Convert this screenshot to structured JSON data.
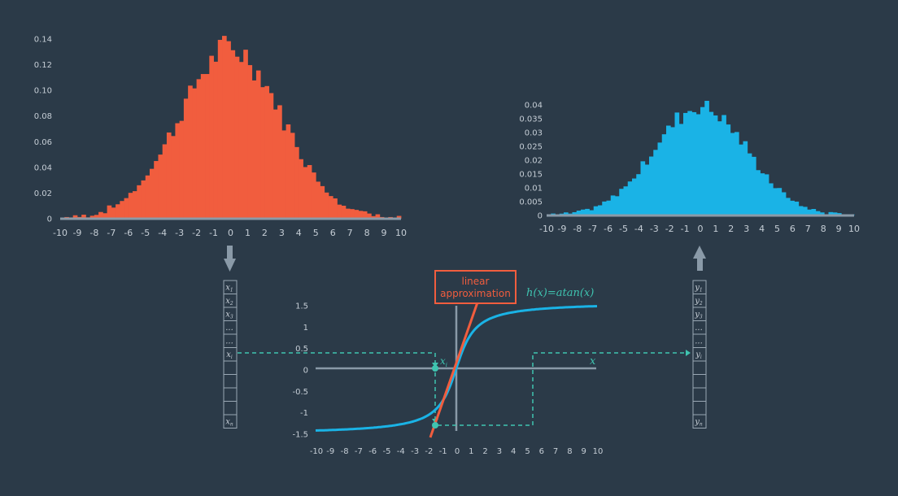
{
  "input_histogram": {
    "bar_color": "#f15d3e",
    "x_ticks": [
      "-10",
      "-9",
      "-8",
      "-7",
      "-6",
      "-5",
      "-4",
      "-3",
      "-2",
      "-1",
      "0",
      "1",
      "2",
      "3",
      "4",
      "5",
      "6",
      "7",
      "8",
      "9",
      "10"
    ],
    "y_ticks": [
      "0",
      "0.02",
      "0.04",
      "0.06",
      "0.08",
      "0.10",
      "0.12",
      "0.14"
    ],
    "ylim": [
      0,
      0.14
    ]
  },
  "output_histogram": {
    "bar_color": "#1ab3e6",
    "x_ticks": [
      "-10",
      "-9",
      "-8",
      "-7",
      "-6",
      "-5",
      "-4",
      "-3",
      "-2",
      "-1",
      "0",
      "1",
      "2",
      "3",
      "4",
      "5",
      "6",
      "7",
      "8",
      "9",
      "10"
    ],
    "y_ticks": [
      "0",
      "0.005",
      "0.01",
      "0.015",
      "0.02",
      "0.025",
      "0.03",
      "0.035",
      "0.04"
    ],
    "ylim": [
      0,
      0.04
    ]
  },
  "transfer_plot": {
    "curve_color": "#1ab3e6",
    "linear_color": "#f15d3e",
    "function_label": "h(x)=atan(x)",
    "x_axis_label": "x",
    "x_ticks": [
      "-10",
      "-9",
      "-8",
      "-7",
      "-6",
      "-5",
      "-4",
      "-3",
      "-2",
      "-1",
      "0",
      "1",
      "2",
      "3",
      "4",
      "5",
      "6",
      "7",
      "8",
      "9",
      "10"
    ],
    "y_ticks": [
      "1.5",
      "1",
      "0.5",
      "0",
      "-0.5",
      "-1",
      "-1.5"
    ],
    "linear_box_line1": "linear",
    "linear_box_line2": "approximation",
    "xi_label": "x",
    "xi_sub": "i"
  },
  "input_vector": {
    "cells": [
      {
        "t": "x",
        "s": "1"
      },
      {
        "t": "x",
        "s": "2"
      },
      {
        "t": "x",
        "s": "3"
      },
      {
        "t": "...",
        "s": ""
      },
      {
        "t": "...",
        "s": ""
      },
      {
        "t": "x",
        "s": "i"
      },
      {
        "t": "",
        "s": ""
      },
      {
        "t": "",
        "s": ""
      },
      {
        "t": "",
        "s": ""
      },
      {
        "t": "",
        "s": ""
      },
      {
        "t": "x",
        "s": "n"
      }
    ]
  },
  "output_vector": {
    "cells": [
      {
        "t": "y",
        "s": "1"
      },
      {
        "t": "y",
        "s": "2"
      },
      {
        "t": "y",
        "s": "3"
      },
      {
        "t": "...",
        "s": ""
      },
      {
        "t": "...",
        "s": ""
      },
      {
        "t": "y",
        "s": "i"
      },
      {
        "t": "",
        "s": ""
      },
      {
        "t": "",
        "s": ""
      },
      {
        "t": "",
        "s": ""
      },
      {
        "t": "",
        "s": ""
      },
      {
        "t": "y",
        "s": "n"
      }
    ]
  },
  "colors": {
    "background": "#2b3a48",
    "axis": "#8a9aa8",
    "dash": "#3fc4b0",
    "cell_border": "#9aa8b4"
  }
}
